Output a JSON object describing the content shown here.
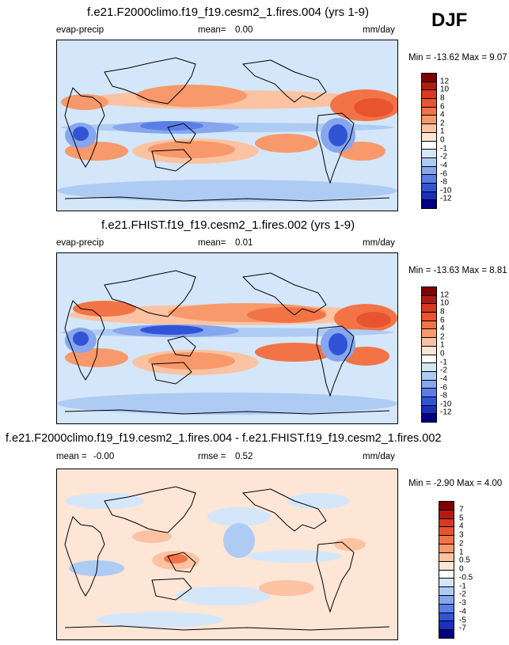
{
  "season": "DJF",
  "units_label": "mm/day",
  "panels": [
    {
      "title": "f.e21.F2000climo.f19_f19.cesm2_1.fires.004 (yrs 1-9)",
      "variable": "evap-precip",
      "stat1_label": "mean=",
      "stat1_value": "0.00",
      "stat2_label": "",
      "stat2_value": "",
      "units": "mm/day",
      "minmax": "Min = -13.62 Max =   9.07",
      "colorbar_labels": [
        "12",
        "10",
        "8",
        "6",
        "4",
        "2",
        "1",
        "0",
        "-1",
        "-2",
        "-4",
        "-6",
        "-8",
        "-10",
        "-12"
      ],
      "colorbar_colors": [
        "#7f0000",
        "#b31b0f",
        "#d73a1f",
        "#e8542f",
        "#f27446",
        "#f7996a",
        "#fbc3a2",
        "#fde6d6",
        "#ffffff",
        "#d4e6fa",
        "#aecbf4",
        "#86a6ee",
        "#5a7ee6",
        "#3154d6",
        "#1a2fc0",
        "#000080"
      ]
    },
    {
      "title": "f.e21.FHIST.f19_f19.cesm2_1.fires.002 (yrs 1-9)",
      "variable": "evap-precip",
      "stat1_label": "mean=",
      "stat1_value": "0.01",
      "stat2_label": "",
      "stat2_value": "",
      "units": "mm/day",
      "minmax": "Min = -13.63 Max =   8.81",
      "colorbar_labels": [
        "12",
        "10",
        "8",
        "6",
        "4",
        "2",
        "1",
        "0",
        "-1",
        "-2",
        "-4",
        "-6",
        "-8",
        "-10",
        "-12"
      ],
      "colorbar_colors": [
        "#7f0000",
        "#b31b0f",
        "#d73a1f",
        "#e8542f",
        "#f27446",
        "#f7996a",
        "#fbc3a2",
        "#fde6d6",
        "#ffffff",
        "#d4e6fa",
        "#aecbf4",
        "#86a6ee",
        "#5a7ee6",
        "#3154d6",
        "#1a2fc0",
        "#000080"
      ]
    },
    {
      "title": "f.e21.F2000climo.f19_f19.cesm2_1.fires.004 - f.e21.FHIST.f19_f19.cesm2_1.fires.002",
      "variable": "",
      "stat1_label": "mean =",
      "stat1_value": "-0.00",
      "stat2_label": "rmse =",
      "stat2_value": "0.52",
      "units": "mm/day",
      "minmax": "Min =  -2.90 Max =   4.00",
      "colorbar_labels": [
        "7",
        "5",
        "4",
        "3",
        "2",
        "1",
        "0.5",
        "0",
        "-0.5",
        "-1",
        "-2",
        "-3",
        "-4",
        "-5",
        "-7"
      ],
      "colorbar_colors": [
        "#7f0000",
        "#b31b0f",
        "#d73a1f",
        "#e8542f",
        "#f27446",
        "#f7996a",
        "#fbc3a2",
        "#fde6d6",
        "#ffffff",
        "#d4e6fa",
        "#aecbf4",
        "#86a6ee",
        "#5a7ee6",
        "#3154d6",
        "#1a2fc0",
        "#000080"
      ]
    }
  ]
}
